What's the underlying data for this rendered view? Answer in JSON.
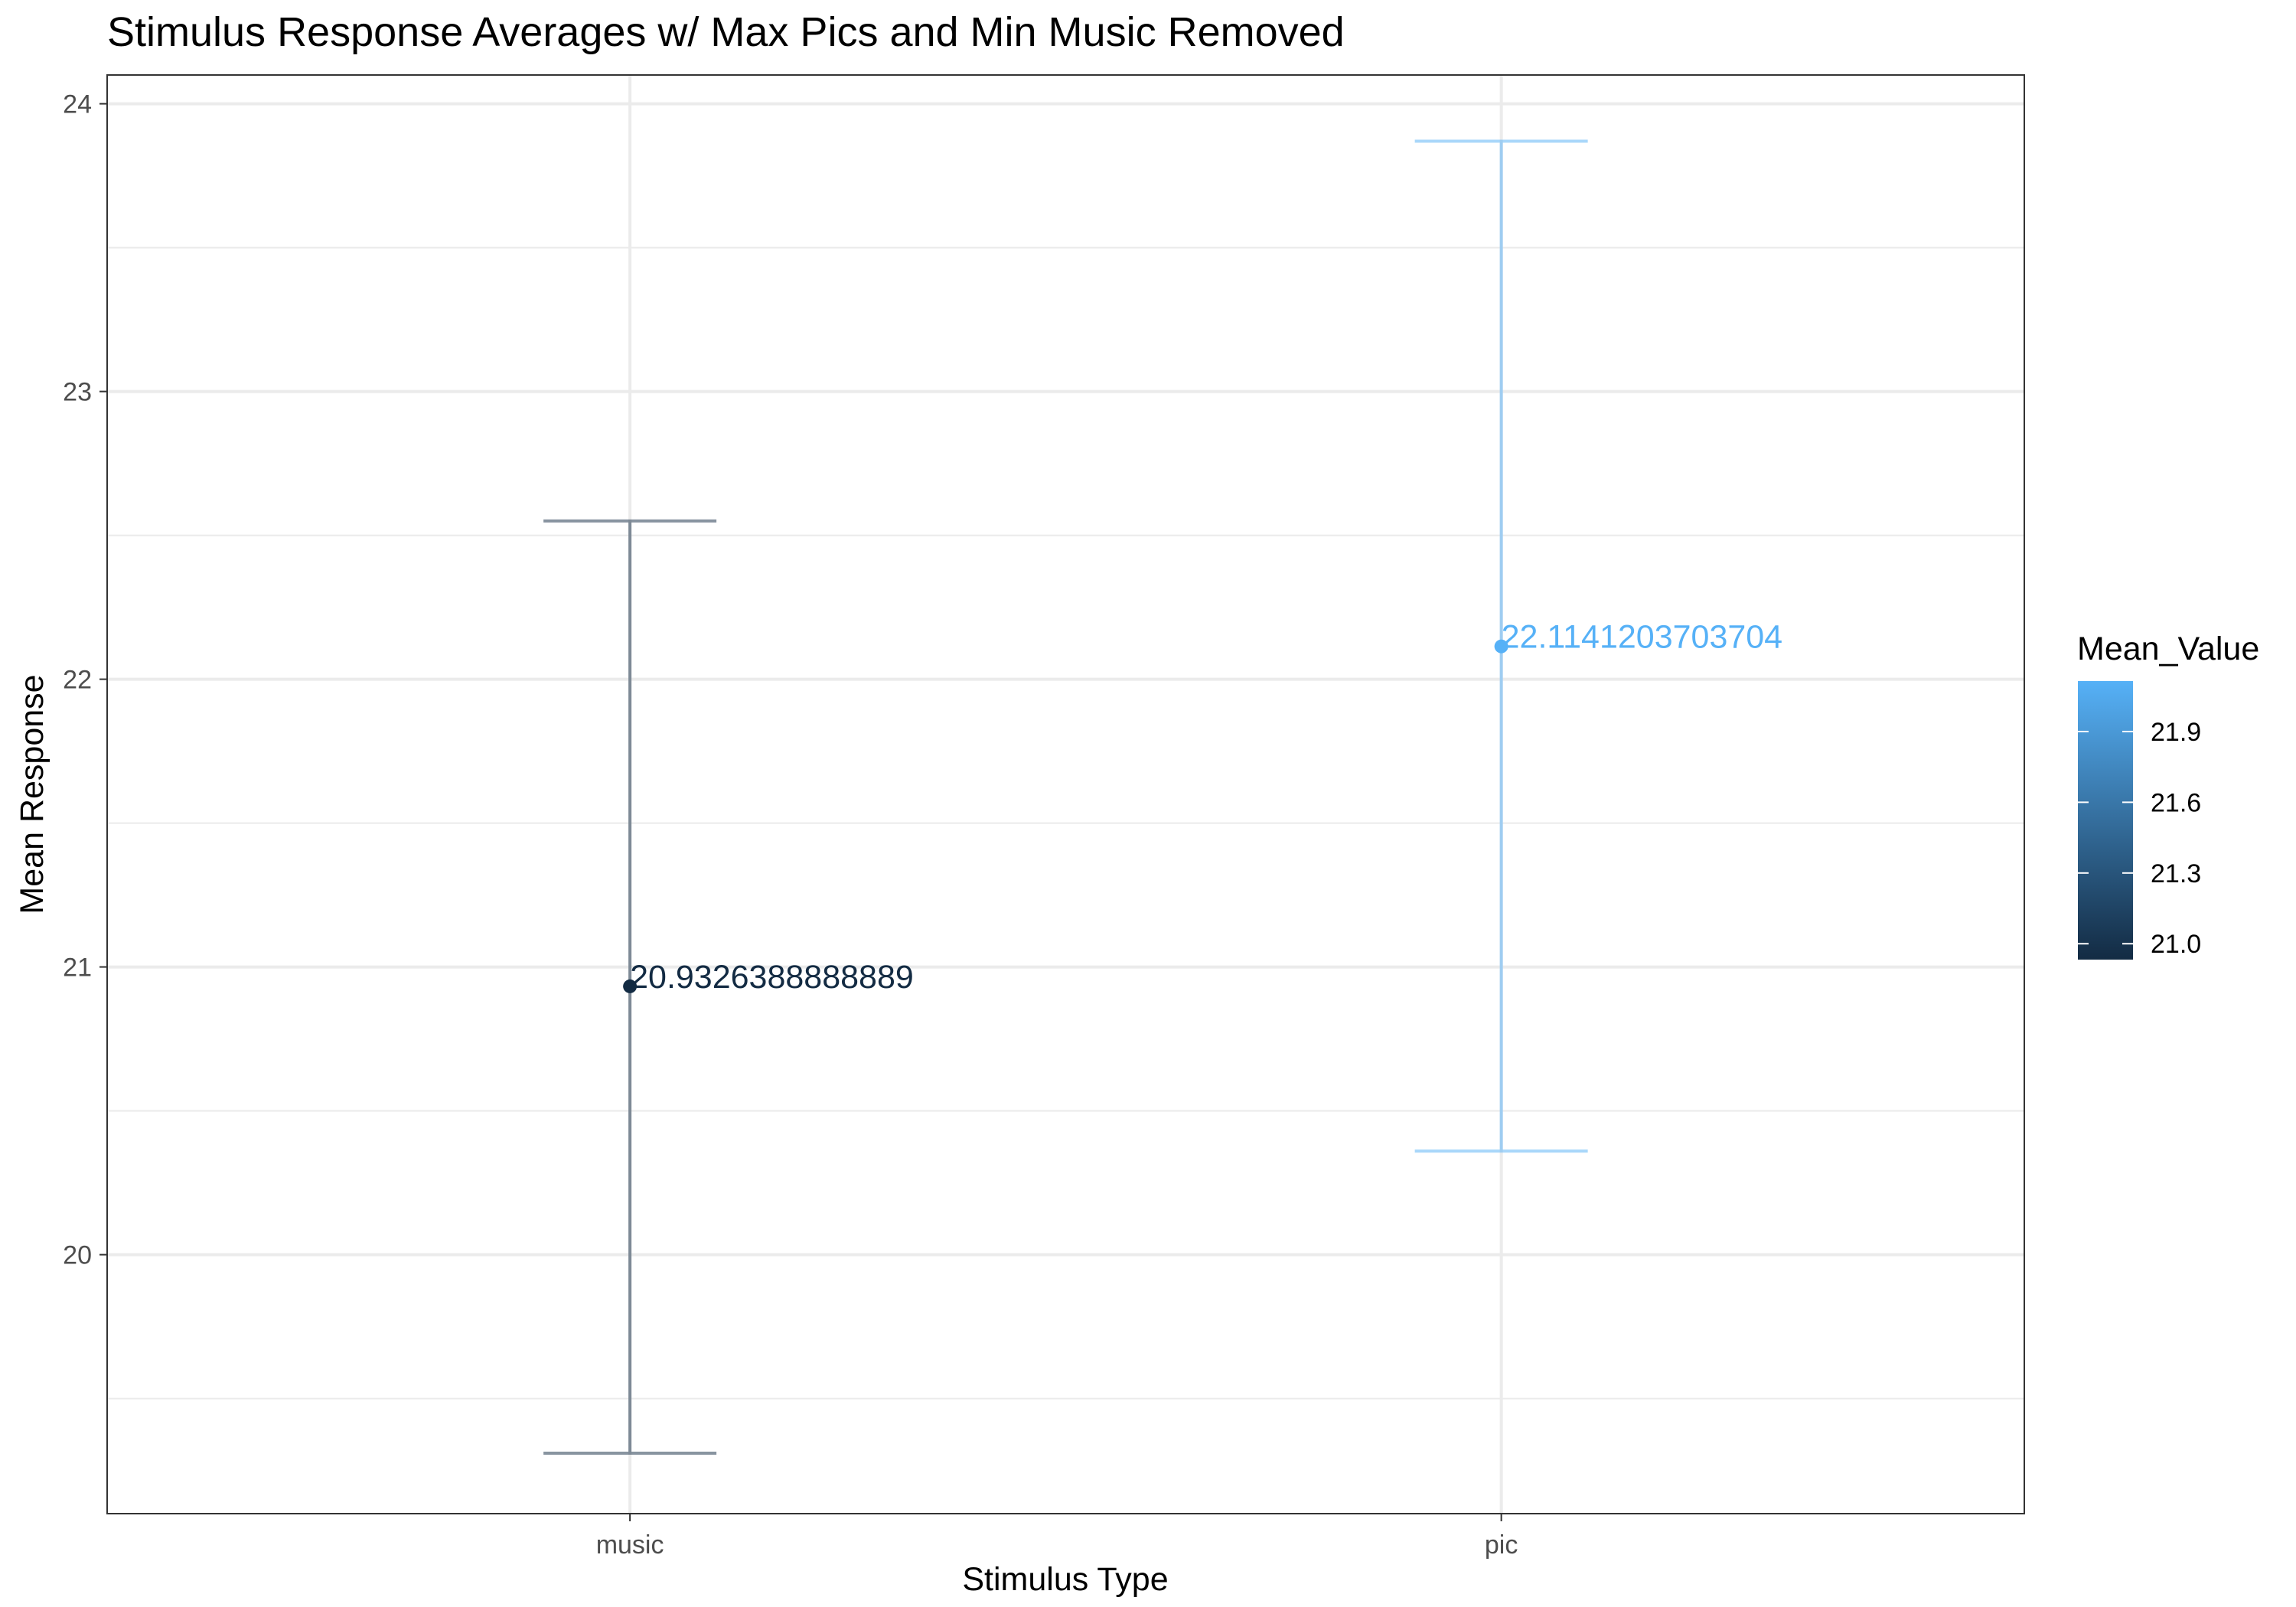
{
  "chart_data": {
    "type": "errorbar",
    "title": "Stimulus Response Averages w/ Max Pics and Min Music Removed",
    "xlabel": "Stimulus Type",
    "ylabel": "Mean Response",
    "categories": [
      "music",
      "pic"
    ],
    "points": [
      {
        "category": "music",
        "mean": 20.9326388888889,
        "lower": 19.31,
        "upper": 22.55,
        "label": "20.9326388888889",
        "color": "#132b43"
      },
      {
        "category": "pic",
        "mean": 22.1141203703704,
        "lower": 20.36,
        "upper": 23.87,
        "label": "22.1141203703704",
        "color": "#56b1f7"
      }
    ],
    "ylim": [
      19.1,
      24.1
    ],
    "yticks": [
      20,
      21,
      22,
      23,
      24
    ],
    "grid": true,
    "legend": {
      "title": "Mean_Value",
      "type": "colorbar",
      "low_color": "#132b43",
      "high_color": "#56b1f7",
      "range": [
        20.9326388888889,
        22.1141203703704
      ],
      "ticks": [
        21.0,
        21.3,
        21.6,
        21.9
      ],
      "tick_labels": [
        "21.0",
        "21.3",
        "21.6",
        "21.9"
      ],
      "placement": "right"
    }
  }
}
